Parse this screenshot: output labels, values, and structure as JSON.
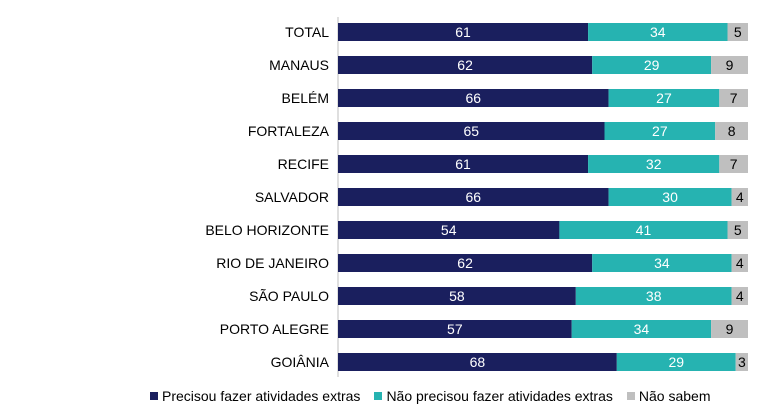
{
  "chart_data": {
    "type": "bar",
    "orientation": "horizontal",
    "stacked": true,
    "categories": [
      "TOTAL",
      "MANAUS",
      "BELÉM",
      "FORTALEZA",
      "RECIFE",
      "SALVADOR",
      "BELO HORIZONTE",
      "RIO DE JANEIRO",
      "SÃO PAULO",
      "PORTO ALEGRE",
      "GOIÂNIA"
    ],
    "series": [
      {
        "name": "Precisou fazer atividades extras",
        "color": "#1a1f5e",
        "label_color": "#ffffff",
        "values": [
          61,
          62,
          66,
          65,
          61,
          66,
          54,
          62,
          58,
          57,
          68
        ]
      },
      {
        "name": "Não precisou fazer atividades extras",
        "color": "#26b3b1",
        "label_color": "#ffffff",
        "values": [
          34,
          29,
          27,
          27,
          32,
          30,
          41,
          34,
          38,
          34,
          29
        ]
      },
      {
        "name": "Não sabem",
        "color": "#bfbfbf",
        "label_color": "#000000",
        "values": [
          5,
          9,
          7,
          8,
          7,
          4,
          5,
          4,
          4,
          9,
          3
        ]
      }
    ],
    "xlim": [
      0,
      100
    ],
    "legend": "bottom",
    "grid": false
  }
}
